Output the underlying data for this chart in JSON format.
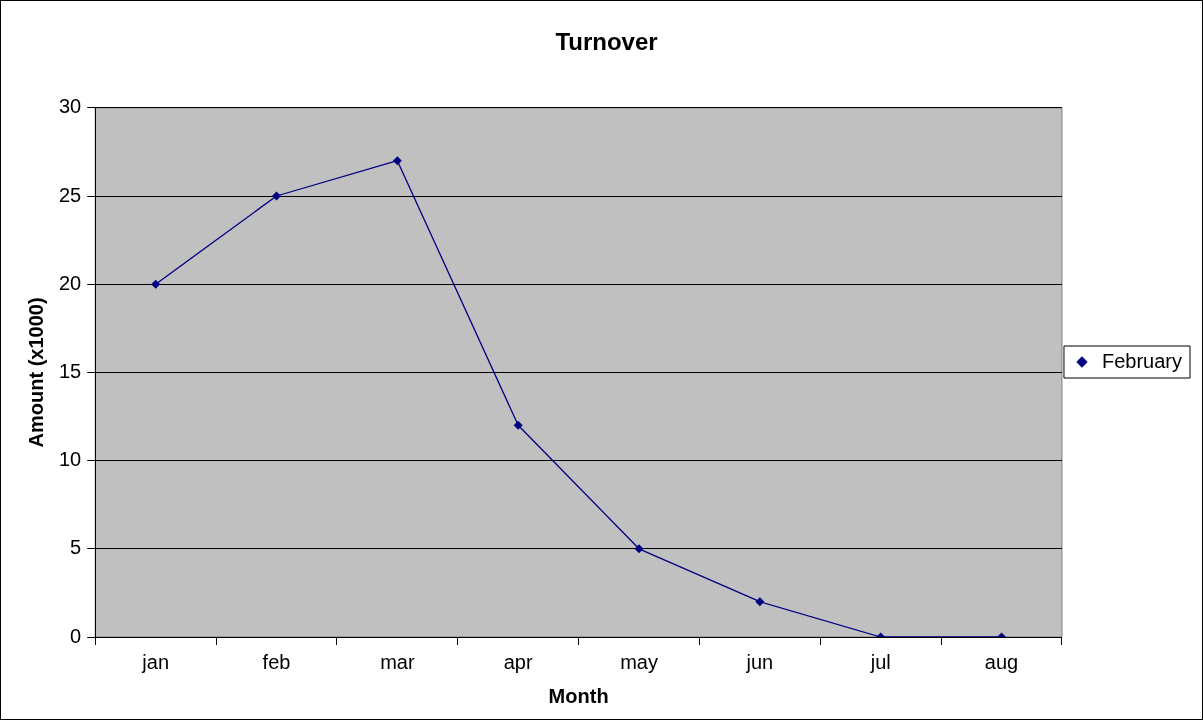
{
  "chart_data": {
    "type": "line",
    "title": "Turnover",
    "xlabel": "Month",
    "ylabel": "Amount (x1000)",
    "categories": [
      "jan",
      "feb",
      "mar",
      "apr",
      "may",
      "jun",
      "jul",
      "aug"
    ],
    "series": [
      {
        "name": "February",
        "color": "#000080",
        "values": [
          20,
          25,
          27,
          12,
          5,
          2,
          0,
          0
        ]
      }
    ],
    "ylim": [
      0,
      30
    ],
    "yticks": [
      0,
      5,
      10,
      15,
      20,
      25,
      30
    ],
    "grid": "y",
    "legend": "right",
    "marker": "diamond",
    "line_style": "solid"
  }
}
